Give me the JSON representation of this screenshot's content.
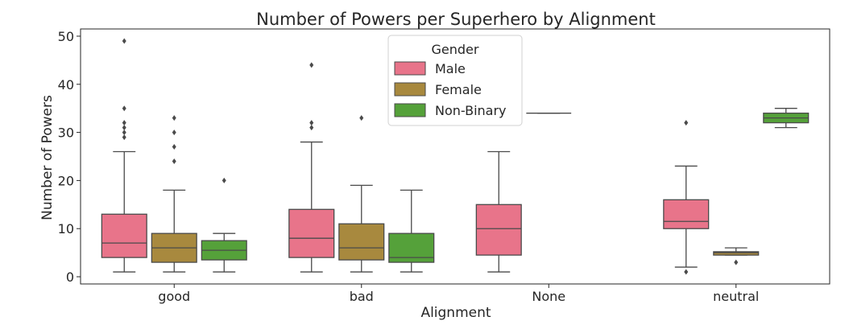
{
  "chart_data": {
    "type": "box",
    "title": "Number of Powers per Superhero by Alignment",
    "xlabel": "Alignment",
    "ylabel": "Number of Powers",
    "ylim": [
      -1.5,
      51.5
    ],
    "yticks": [
      0,
      10,
      20,
      30,
      40,
      50
    ],
    "categories": [
      "good",
      "bad",
      "None",
      "neutral"
    ],
    "legend": {
      "title": "Gender",
      "position": "top-center"
    },
    "series": [
      {
        "name": "Male",
        "color": "#e8748a",
        "boxes": [
          {
            "category": "good",
            "whislo": 1,
            "q1": 4,
            "med": 7,
            "q3": 13,
            "whishi": 26,
            "fliers": [
              29,
              30,
              31,
              32,
              35,
              49
            ]
          },
          {
            "category": "bad",
            "whislo": 1,
            "q1": 4,
            "med": 8,
            "q3": 14,
            "whishi": 28,
            "fliers": [
              31,
              32,
              44
            ]
          },
          {
            "category": "None",
            "whislo": 1,
            "q1": 4.5,
            "med": 10,
            "q3": 15,
            "whishi": 26,
            "fliers": []
          },
          {
            "category": "neutral",
            "whislo": 2,
            "q1": 10,
            "med": 11.5,
            "q3": 16,
            "whishi": 23,
            "fliers": [
              1,
              32
            ]
          }
        ]
      },
      {
        "name": "Female",
        "color": "#a8893e",
        "boxes": [
          {
            "category": "good",
            "whislo": 1,
            "q1": 3,
            "med": 6,
            "q3": 9,
            "whishi": 18,
            "fliers": [
              24,
              27,
              30,
              33
            ]
          },
          {
            "category": "bad",
            "whislo": 1,
            "q1": 3.5,
            "med": 6,
            "q3": 11,
            "whishi": 19,
            "fliers": [
              33
            ]
          },
          {
            "category": "None",
            "whislo": 34,
            "q1": 34,
            "med": 34,
            "q3": 34,
            "whishi": 34,
            "fliers": []
          },
          {
            "category": "neutral",
            "whislo": 4.5,
            "q1": 4.5,
            "med": 5,
            "q3": 5.2,
            "whishi": 6,
            "fliers": [
              3
            ]
          }
        ]
      },
      {
        "name": "Non-Binary",
        "color": "#55a13a",
        "boxes": [
          {
            "category": "good",
            "whislo": 1,
            "q1": 3.5,
            "med": 5.5,
            "q3": 7.5,
            "whishi": 9,
            "fliers": [
              20
            ]
          },
          {
            "category": "bad",
            "whislo": 1,
            "q1": 3,
            "med": 4,
            "q3": 9,
            "whishi": 18,
            "fliers": []
          },
          {
            "category": "neutral",
            "whislo": 31,
            "q1": 32,
            "med": 33,
            "q3": 34,
            "whishi": 35,
            "fliers": []
          }
        ]
      }
    ]
  }
}
